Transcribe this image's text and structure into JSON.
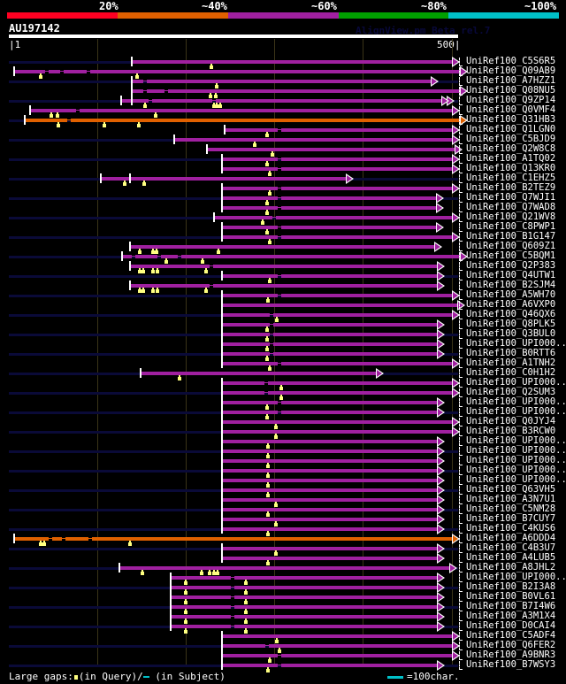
{
  "header": {
    "percent_labels": [
      "20%",
      "~40%",
      "~60%",
      "~80%",
      "~100%"
    ],
    "color_scale": [
      "#ff0022",
      "#e06000",
      "#a020a0",
      "#00a000",
      "#00c0c8"
    ],
    "query_id": "AU197142",
    "watermark": "AlignView.pm Beta rel.7",
    "axis_start": "|1",
    "axis_end": "500|"
  },
  "colors": {
    "purple": "#a020a0",
    "orange": "#e06000",
    "background_line": "#0a0a38",
    "marker": "#ffff80"
  },
  "hits": [
    {
      "label": "UniRef100_C5S6R5",
      "color": "purple",
      "start": 138,
      "end": 494,
      "bg": true,
      "gaps": [],
      "marks": [
        226
      ]
    },
    {
      "label": "UniRef100_Q09AB9",
      "color": "purple",
      "start": 7,
      "end": 503,
      "bg": false,
      "gaps": [
        43,
        60,
        90
      ],
      "marks": [
        36,
        144
      ]
    },
    {
      "label": "UniRef100_A7HZZ1",
      "color": "purple",
      "start": 138,
      "end": 470,
      "bg": true,
      "gaps": [
        153
      ],
      "marks": [
        232
      ]
    },
    {
      "label": "UniRef100_Q08NU5",
      "color": "purple",
      "start": 138,
      "end": 503,
      "bg": false,
      "gaps": [
        153,
        176
      ],
      "marks": [
        225,
        231
      ]
    },
    {
      "label": "UniRef100_Q9ZP14",
      "color": "purple",
      "start": 126,
      "end": 488,
      "bg": true,
      "gaps": [
        158,
        229
      ],
      "marks": [
        153,
        229,
        232,
        236
      ],
      "extra_start": 138,
      "second_arrow": 482
    },
    {
      "label": "UniRef100_Q0VMF4",
      "color": "purple",
      "start": 25,
      "end": 494,
      "bg": false,
      "gaps": [
        78
      ],
      "marks": [
        48,
        55,
        164
      ]
    },
    {
      "label": "UniRef100_Q31HB3",
      "color": "orange",
      "start": 19,
      "end": 503,
      "bg": true,
      "gaps": [
        68
      ],
      "marks": [
        56,
        107,
        146
      ]
    },
    {
      "label": "UniRef100_Q1LGN0",
      "color": "purple",
      "start": 241,
      "end": 494,
      "bg": false,
      "gaps": [
        302
      ],
      "marks": [
        288
      ]
    },
    {
      "label": "UniRef100_C5BJD9",
      "color": "purple",
      "start": 185,
      "end": 494,
      "bg": true,
      "gaps": [],
      "marks": [
        275
      ]
    },
    {
      "label": "UniRef100_Q2W8C8",
      "color": "purple",
      "start": 221,
      "end": 497,
      "bg": false,
      "gaps": [],
      "marks": [
        294
      ]
    },
    {
      "label": "UniRef100_A1TQ02",
      "color": "purple",
      "start": 238,
      "end": 494,
      "bg": true,
      "gaps": [
        302
      ],
      "marks": [
        288
      ]
    },
    {
      "label": "UniRef100_Q13KR0",
      "color": "purple",
      "start": 238,
      "end": 494,
      "bg": false,
      "gaps": [
        302
      ],
      "marks": [
        291
      ]
    },
    {
      "label": "UniRef100_C1EHZ5",
      "color": "purple",
      "start": 103,
      "end": 376,
      "bg": true,
      "gaps": [],
      "marks": [
        130,
        152
      ],
      "extra_start": 136
    },
    {
      "label": "UniRef100_B2TEZ9",
      "color": "purple",
      "start": 238,
      "end": 494,
      "bg": false,
      "gaps": [
        302
      ],
      "marks": [
        291
      ]
    },
    {
      "label": "UniRef100_Q7WJI1",
      "color": "purple",
      "start": 238,
      "end": 476,
      "bg": true,
      "gaps": [
        302
      ],
      "marks": [
        288
      ]
    },
    {
      "label": "UniRef100_Q7WAD8",
      "color": "purple",
      "start": 238,
      "end": 476,
      "bg": false,
      "gaps": [
        302
      ],
      "marks": [
        288
      ]
    },
    {
      "label": "UniRef100_Q21WV8",
      "color": "purple",
      "start": 229,
      "end": 494,
      "bg": true,
      "gaps": [
        296
      ],
      "marks": [
        283
      ]
    },
    {
      "label": "UniRef100_C8PWP1",
      "color": "purple",
      "start": 238,
      "end": 476,
      "bg": false,
      "gaps": [
        302
      ],
      "marks": [
        288
      ]
    },
    {
      "label": "UniRef100_B1G147",
      "color": "purple",
      "start": 238,
      "end": 494,
      "bg": true,
      "gaps": [
        302
      ],
      "marks": [
        291
      ]
    },
    {
      "label": "UniRef100_Q609Z1",
      "color": "purple",
      "start": 136,
      "end": 474,
      "bg": false,
      "gaps": [],
      "marks": [
        147,
        161,
        165,
        234
      ]
    },
    {
      "label": "UniRef100_C5BQM1",
      "color": "purple",
      "start": 127,
      "end": 503,
      "bg": true,
      "gaps": [
        140,
        168,
        191
      ],
      "marks": [
        176,
        217
      ]
    },
    {
      "label": "UniRef100_Q2P383",
      "color": "purple",
      "start": 136,
      "end": 477,
      "bg": false,
      "gaps": [
        226
      ],
      "marks": [
        147,
        151,
        161,
        166,
        220
      ]
    },
    {
      "label": "UniRef100_Q4UTW1",
      "color": "purple",
      "start": 238,
      "end": 477,
      "bg": true,
      "gaps": [
        302
      ],
      "marks": [
        291
      ]
    },
    {
      "label": "UniRef100_B2SJM4",
      "color": "purple",
      "start": 136,
      "end": 477,
      "bg": false,
      "gaps": [
        226
      ],
      "marks": [
        147,
        151,
        161,
        166,
        220
      ]
    },
    {
      "label": "UniRef100_A5WH70",
      "color": "purple",
      "start": 238,
      "end": 494,
      "bg": true,
      "gaps": [
        302
      ],
      "marks": [
        289
      ]
    },
    {
      "label": "UniRef100_A6VXP0",
      "color": "purple",
      "start": 238,
      "end": 500,
      "bg": false,
      "gaps": [],
      "marks": []
    },
    {
      "label": "UniRef100_Q46QX6",
      "color": "purple",
      "start": 238,
      "end": 494,
      "bg": true,
      "gaps": [
        293
      ],
      "marks": [
        299
      ]
    },
    {
      "label": "UniRef100_Q8PLK5",
      "color": "purple",
      "start": 238,
      "end": 477,
      "bg": false,
      "gaps": [
        293
      ],
      "marks": [
        288
      ]
    },
    {
      "label": "UniRef100_Q3BUL0",
      "color": "purple",
      "start": 238,
      "end": 477,
      "bg": true,
      "gaps": [
        293
      ],
      "marks": [
        288
      ]
    },
    {
      "label": "UniRef100_UPI000..",
      "color": "purple",
      "start": 238,
      "end": 477,
      "bg": false,
      "gaps": [
        293
      ],
      "marks": [
        288
      ]
    },
    {
      "label": "UniRef100_B0RTT6",
      "color": "purple",
      "start": 238,
      "end": 477,
      "bg": true,
      "gaps": [
        293
      ],
      "marks": [
        288
      ]
    },
    {
      "label": "UniRef100_A1TNH2",
      "color": "purple",
      "start": 238,
      "end": 494,
      "bg": false,
      "gaps": [
        302
      ],
      "marks": [
        291
      ]
    },
    {
      "label": "UniRef100_C0H1H2",
      "color": "purple",
      "start": 148,
      "end": 409,
      "bg": true,
      "gaps": [],
      "marks": [
        191
      ]
    },
    {
      "label": "UniRef100_UPI000..",
      "color": "purple",
      "start": 238,
      "end": 494,
      "bg": false,
      "gaps": [
        287
      ],
      "marks": [
        304
      ]
    },
    {
      "label": "UniRef100_Q2SUM3",
      "color": "purple",
      "start": 238,
      "end": 494,
      "bg": true,
      "gaps": [
        287
      ],
      "marks": [
        304
      ]
    },
    {
      "label": "UniRef100_UPI000..",
      "color": "purple",
      "start": 238,
      "end": 477,
      "bg": false,
      "gaps": [
        302
      ],
      "marks": [
        288
      ]
    },
    {
      "label": "UniRef100_UPI000..",
      "color": "purple",
      "start": 238,
      "end": 477,
      "bg": true,
      "gaps": [
        302
      ],
      "marks": [
        288
      ]
    },
    {
      "label": "UniRef100_Q0JYJ4",
      "color": "purple",
      "start": 238,
      "end": 494,
      "bg": false,
      "gaps": [],
      "marks": [
        298
      ]
    },
    {
      "label": "UniRef100_B3RCW0",
      "color": "purple",
      "start": 238,
      "end": 494,
      "bg": true,
      "gaps": [],
      "marks": [
        298
      ]
    },
    {
      "label": "UniRef100_UPI000..",
      "color": "purple",
      "start": 238,
      "end": 477,
      "bg": false,
      "gaps": [],
      "marks": [
        289
      ]
    },
    {
      "label": "UniRef100_UPI000..",
      "color": "purple",
      "start": 238,
      "end": 477,
      "bg": true,
      "gaps": [],
      "marks": [
        289
      ]
    },
    {
      "label": "UniRef100_UPI000..",
      "color": "purple",
      "start": 238,
      "end": 477,
      "bg": false,
      "gaps": [],
      "marks": [
        289
      ]
    },
    {
      "label": "UniRef100_UPI000..",
      "color": "purple",
      "start": 238,
      "end": 477,
      "bg": true,
      "gaps": [],
      "marks": [
        289
      ]
    },
    {
      "label": "UniRef100_UPI000..",
      "color": "purple",
      "start": 238,
      "end": 477,
      "bg": false,
      "gaps": [],
      "marks": [
        289
      ]
    },
    {
      "label": "UniRef100_Q63VH5",
      "color": "purple",
      "start": 238,
      "end": 477,
      "bg": true,
      "gaps": [],
      "marks": [
        289
      ]
    },
    {
      "label": "UniRef100_A3N7U1",
      "color": "purple",
      "start": 238,
      "end": 477,
      "bg": false,
      "gaps": [],
      "marks": [
        298
      ]
    },
    {
      "label": "UniRef100_C5NM28",
      "color": "purple",
      "start": 238,
      "end": 477,
      "bg": true,
      "gaps": [],
      "marks": [
        289
      ]
    },
    {
      "label": "UniRef100_B7CUY7",
      "color": "purple",
      "start": 238,
      "end": 477,
      "bg": false,
      "gaps": [],
      "marks": [
        298
      ]
    },
    {
      "label": "UniRef100_C4KUS6",
      "color": "purple",
      "start": 238,
      "end": 477,
      "bg": true,
      "gaps": [],
      "marks": [
        289
      ]
    },
    {
      "label": "UniRef100_A6DDD4",
      "color": "orange",
      "start": 7,
      "end": 494,
      "bg": false,
      "gaps": [
        47,
        62,
        92
      ],
      "marks": [
        36,
        40,
        136
      ]
    },
    {
      "label": "UniRef100_C4B3U7",
      "color": "purple",
      "start": 238,
      "end": 477,
      "bg": true,
      "gaps": [],
      "marks": [
        298
      ]
    },
    {
      "label": "UniRef100_A4LUB5",
      "color": "purple",
      "start": 238,
      "end": 477,
      "bg": false,
      "gaps": [],
      "marks": [
        289
      ]
    },
    {
      "label": "UniRef100_A8JHL2",
      "color": "purple",
      "start": 124,
      "end": 491,
      "bg": true,
      "gaps": [],
      "marks": [
        150,
        216,
        224,
        229,
        233
      ]
    },
    {
      "label": "UniRef100_UPI000..",
      "color": "purple",
      "start": 181,
      "end": 477,
      "bg": false,
      "gaps": [
        250
      ],
      "marks": [
        198,
        265
      ]
    },
    {
      "label": "UniRef100_B2I3A8",
      "color": "purple",
      "start": 181,
      "end": 477,
      "bg": true,
      "gaps": [
        250
      ],
      "marks": [
        198,
        265
      ]
    },
    {
      "label": "UniRef100_B0VL61",
      "color": "purple",
      "start": 181,
      "end": 477,
      "bg": false,
      "gaps": [
        250
      ],
      "marks": [
        198,
        265
      ]
    },
    {
      "label": "UniRef100_B7I4W6",
      "color": "purple",
      "start": 181,
      "end": 477,
      "bg": true,
      "gaps": [
        250
      ],
      "marks": [
        198,
        265
      ]
    },
    {
      "label": "UniRef100_A3M1X4",
      "color": "purple",
      "start": 181,
      "end": 477,
      "bg": false,
      "gaps": [
        250
      ],
      "marks": [
        198,
        265
      ]
    },
    {
      "label": "UniRef100_D0CAI4",
      "color": "purple",
      "start": 181,
      "end": 477,
      "bg": true,
      "gaps": [
        250
      ],
      "marks": [
        198,
        265
      ]
    },
    {
      "label": "UniRef100_C5ADF4",
      "color": "purple",
      "start": 238,
      "end": 494,
      "bg": false,
      "gaps": [],
      "marks": [
        299
      ]
    },
    {
      "label": "UniRef100_Q6FER2",
      "color": "purple",
      "start": 238,
      "end": 494,
      "bg": true,
      "gaps": [
        288
      ],
      "marks": [
        302
      ]
    },
    {
      "label": "UniRef100_A9BNR3",
      "color": "purple",
      "start": 238,
      "end": 494,
      "bg": false,
      "gaps": [
        302
      ],
      "marks": [
        291
      ]
    },
    {
      "label": "UniRef100_B7WSY3",
      "color": "purple",
      "start": 238,
      "end": 477,
      "bg": true,
      "gaps": [
        302
      ],
      "marks": [
        289
      ]
    }
  ],
  "legend": {
    "large_gaps": "Large gaps:",
    "in_query": "(in Query)/",
    "in_subject": "(in Subject)",
    "scale_text": "=100char."
  }
}
